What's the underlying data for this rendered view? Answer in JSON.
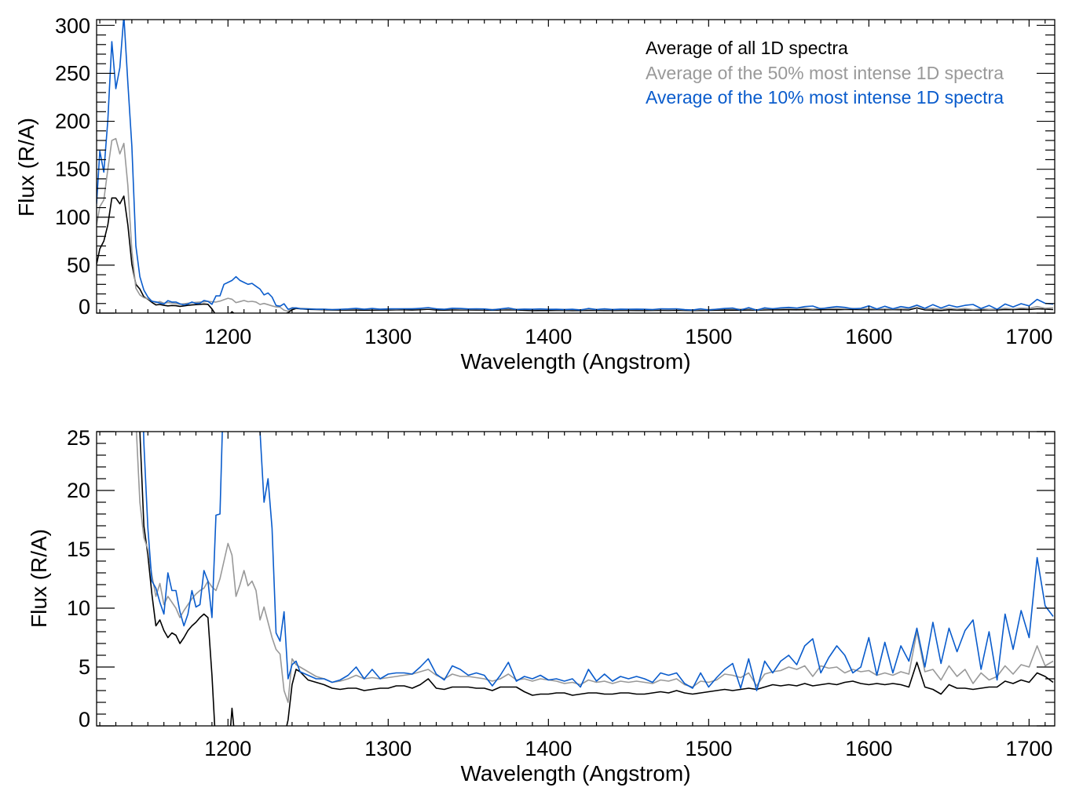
{
  "colors": {
    "all": "#000000",
    "p50": "#999999",
    "p10": "#0a5ccc"
  },
  "legend": [
    {
      "label": "Average of all 1D spectra",
      "key": "all"
    },
    {
      "label": "Average of the 50% most intense 1D spectra",
      "key": "p50"
    },
    {
      "label": "Average of the 10% most intense 1D spectra",
      "key": "p10"
    }
  ],
  "chart_data": [
    {
      "type": "line",
      "title": "",
      "xlabel": "Wavelength (Angstrom)",
      "ylabel": "Flux (R/A)",
      "xlim": [
        1118,
        1716
      ],
      "ylim": [
        0,
        306
      ],
      "xticks": [
        1200,
        1300,
        1400,
        1500,
        1600,
        1700
      ],
      "xminor": 10,
      "yticks": [
        0,
        50,
        100,
        150,
        200,
        250,
        300
      ],
      "yminor": 10,
      "legend_position": "top-right",
      "grid": false
    },
    {
      "type": "line",
      "title": "",
      "xlabel": "Wavelength (Angstrom)",
      "ylabel": "Flux (R/A)",
      "xlim": [
        1118,
        1716
      ],
      "ylim": [
        0,
        25
      ],
      "xticks": [
        1200,
        1300,
        1400,
        1500,
        1600,
        1700
      ],
      "xminor": 10,
      "yticks": [
        0,
        5,
        10,
        15,
        20,
        25
      ],
      "yminor": 1,
      "grid": false
    }
  ],
  "series_data": {
    "x": [
      1118,
      1120,
      1122.5,
      1125,
      1127.5,
      1130,
      1132.5,
      1135,
      1137.5,
      1140,
      1142.5,
      1145,
      1147.5,
      1150,
      1152.5,
      1155,
      1157.5,
      1160,
      1162.5,
      1165,
      1167.5,
      1170,
      1172.5,
      1175,
      1177.5,
      1180,
      1182.5,
      1185,
      1187.5,
      1190,
      1192.5,
      1195,
      1197.5,
      1200,
      1202.5,
      1205,
      1207.5,
      1210,
      1212.5,
      1215,
      1217.5,
      1220,
      1222.5,
      1225,
      1227.5,
      1230,
      1232.5,
      1235,
      1237.5,
      1240,
      1242.5,
      1245,
      1250,
      1255,
      1260,
      1265,
      1270,
      1275,
      1280,
      1285,
      1290,
      1295,
      1300,
      1305,
      1310,
      1315,
      1320,
      1325,
      1330,
      1335,
      1340,
      1345,
      1350,
      1355,
      1360,
      1365,
      1370,
      1375,
      1380,
      1385,
      1390,
      1395,
      1400,
      1405,
      1410,
      1415,
      1420,
      1425,
      1430,
      1435,
      1440,
      1445,
      1450,
      1455,
      1460,
      1465,
      1470,
      1475,
      1480,
      1485,
      1490,
      1495,
      1500,
      1505,
      1510,
      1515,
      1520,
      1525,
      1530,
      1535,
      1540,
      1545,
      1550,
      1555,
      1560,
      1565,
      1570,
      1575,
      1580,
      1585,
      1590,
      1595,
      1600,
      1605,
      1610,
      1615,
      1620,
      1625,
      1630,
      1635,
      1640,
      1645,
      1650,
      1655,
      1660,
      1665,
      1670,
      1675,
      1680,
      1685,
      1690,
      1695,
      1700,
      1705,
      1710,
      1715
    ],
    "series": [
      {
        "name": "Average of all 1D spectra",
        "key": "all",
        "values": [
          51,
          67,
          75,
          92,
          120,
          120,
          114,
          122,
          92,
          51,
          30,
          25,
          17,
          14.5,
          11.2,
          8.5,
          9,
          8.1,
          7.5,
          7.9,
          7.7,
          7,
          7.5,
          8.1,
          8.5,
          8.8,
          9.2,
          9.5,
          9.2,
          4.3,
          -2,
          -4,
          -4,
          -3,
          1.5,
          -2,
          -4,
          -4,
          -4,
          -4,
          -4,
          -3,
          -4,
          -4,
          -4,
          -4,
          -3,
          -1,
          0.5,
          3.5,
          4.8,
          4.6,
          3.9,
          3.7,
          3.5,
          3.2,
          3.1,
          3.2,
          3.2,
          3.0,
          3.1,
          3.2,
          3.2,
          3.4,
          3.4,
          3.2,
          3.5,
          4.0,
          3.2,
          3.1,
          3.3,
          3.3,
          3.3,
          3.2,
          3.2,
          3.0,
          3.3,
          3.3,
          3.3,
          2.9,
          2.6,
          2.7,
          2.7,
          2.8,
          2.8,
          2.6,
          2.7,
          2.8,
          2.8,
          2.7,
          2.7,
          2.8,
          2.8,
          2.7,
          2.7,
          2.8,
          2.9,
          2.8,
          3.0,
          2.8,
          2.7,
          2.8,
          2.9,
          3.0,
          3.1,
          3.0,
          3.1,
          3.2,
          3.1,
          3.3,
          3.5,
          3.4,
          3.5,
          3.4,
          3.6,
          3.4,
          3.5,
          3.6,
          3.5,
          3.7,
          3.8,
          3.6,
          3.5,
          3.6,
          3.5,
          3.6,
          3.5,
          3.3,
          5.4,
          3.3,
          3.1,
          2.7,
          3.5,
          3.2,
          3.2,
          3.1,
          3.2,
          3.3,
          3.3,
          3.8,
          3.6,
          3.9,
          3.7,
          4.5,
          4.2,
          3.7
        ]
      },
      {
        "name": "Average of the 50% most intense 1D spectra",
        "key": "p50",
        "values": [
          92,
          111,
          118,
          150,
          180,
          182,
          166,
          177,
          133,
          65,
          26,
          19,
          16,
          15,
          12.8,
          11,
          12.1,
          10.3,
          11,
          10.5,
          10,
          9.2,
          9.8,
          10.3,
          10.8,
          11.2,
          11.5,
          11.7,
          12.3,
          11.8,
          11.5,
          12.5,
          14,
          15.5,
          14.5,
          11,
          12,
          13.2,
          11.9,
          12.3,
          11.5,
          9,
          10.1,
          8.8,
          7.5,
          6.5,
          6.1,
          3,
          2,
          5.7,
          5.2,
          5.0,
          4.6,
          4.2,
          4.0,
          3.7,
          3.8,
          4.0,
          4.3,
          4.0,
          4.1,
          4.0,
          4.1,
          4.2,
          4.3,
          4.4,
          4.6,
          4.8,
          4.3,
          4.0,
          4.4,
          4.2,
          4.2,
          4.1,
          4.0,
          3.8,
          4.0,
          4.4,
          3.9,
          4.0,
          3.8,
          4.0,
          3.9,
          3.8,
          3.6,
          3.7,
          3.5,
          3.9,
          3.7,
          3.8,
          3.6,
          3.8,
          3.7,
          3.8,
          3.7,
          3.6,
          3.9,
          3.8,
          4.0,
          3.5,
          3.3,
          3.8,
          3.7,
          3.9,
          4.4,
          4.3,
          4.1,
          4.5,
          3.4,
          4.4,
          4.6,
          4.7,
          5.0,
          4.8,
          5.1,
          4.2,
          5.1,
          4.9,
          5.0,
          4.5,
          4.8,
          4.6,
          4.7,
          4.3,
          4.5,
          4.3,
          4.6,
          4.4,
          8.0,
          4.6,
          4.8,
          3.9,
          5.1,
          4.2,
          4.8,
          3.6,
          4.5,
          3.9,
          4.2,
          5.1,
          4.4,
          5.2,
          5.0,
          6.8,
          5.1,
          5.5
        ]
      },
      {
        "name": "Average of the 10% most intense 1D spectra",
        "key": "p10",
        "values": [
          114,
          169,
          147,
          201,
          283,
          234,
          256,
          310,
          240,
          174,
          70,
          38,
          24,
          16.8,
          12.3,
          11.7,
          10.5,
          9.5,
          13,
          11.5,
          11.5,
          9.7,
          8.5,
          9.5,
          11.5,
          10.1,
          10.3,
          13.2,
          12.3,
          9.2,
          17.9,
          18,
          30,
          32,
          34,
          38,
          34,
          32,
          30,
          31,
          28,
          25,
          19,
          21,
          16.8,
          7.9,
          7.2,
          9.7,
          4,
          5.2,
          5.5,
          4.6,
          4.3,
          4.0,
          4.0,
          3.7,
          3.9,
          4.3,
          5.0,
          4.0,
          4.8,
          4.0,
          4.4,
          4.5,
          4.5,
          4.4,
          5.0,
          5.7,
          4.4,
          3.9,
          5.1,
          4.8,
          4.3,
          4.5,
          4.3,
          3.4,
          4.3,
          5.4,
          3.8,
          4.2,
          4.0,
          4.3,
          3.9,
          4.0,
          3.8,
          4.0,
          3.3,
          4.8,
          3.8,
          4.4,
          3.8,
          4.2,
          4.0,
          4.2,
          4.0,
          3.7,
          4.5,
          4.3,
          4.5,
          3.6,
          3.2,
          4.5,
          3.3,
          4.1,
          4.8,
          5.3,
          3.2,
          5.7,
          3.0,
          5.5,
          4.5,
          5.5,
          6.0,
          5.2,
          6.8,
          7.4,
          4.5,
          5.8,
          6.8,
          6.0,
          4.5,
          5.0,
          7.5,
          4.3,
          7.1,
          4.5,
          6.8,
          5.5,
          8.3,
          5.0,
          8.8,
          5.3,
          8.3,
          6.3,
          8.1,
          9.0,
          4.8,
          8.0,
          3.9,
          9.5,
          6.5,
          9.8,
          7.5,
          14.3,
          10.2,
          9.3
        ]
      }
    ]
  }
}
